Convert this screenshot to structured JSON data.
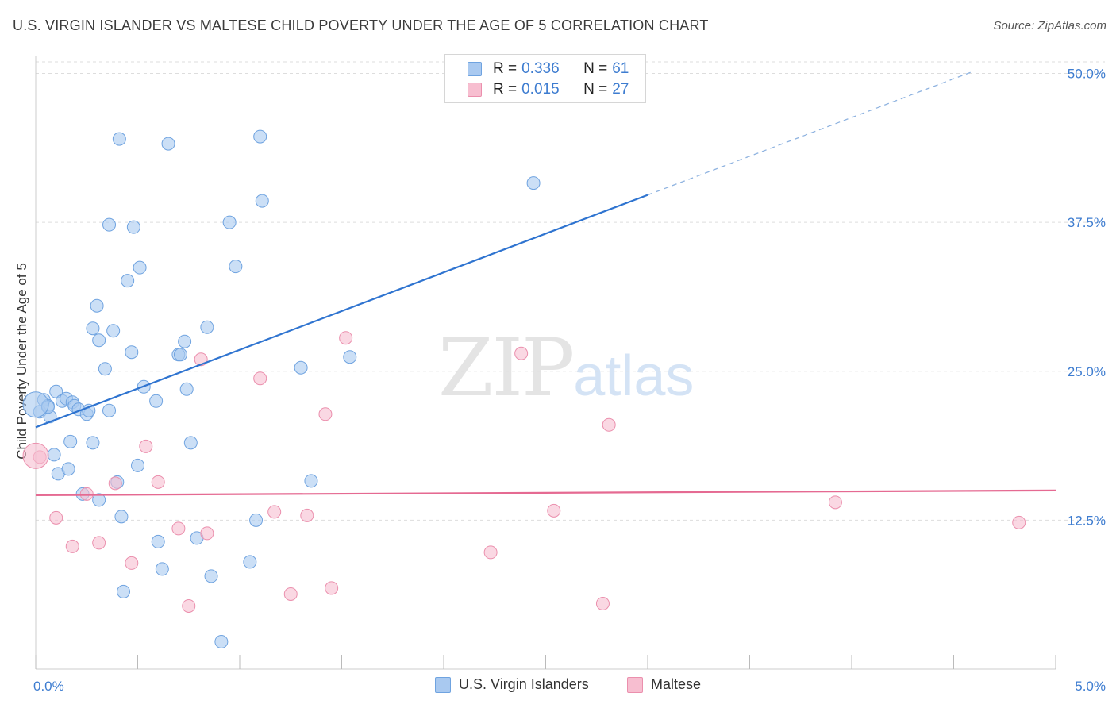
{
  "title": "U.S. VIRGIN ISLANDER VS MALTESE CHILD POVERTY UNDER THE AGE OF 5 CORRELATION CHART",
  "source": "Source: ZipAtlas.com",
  "watermark": {
    "zip": "ZIP",
    "atlas": "atlas"
  },
  "legend": {
    "rows": [
      {
        "r_label": "R =",
        "r_value": "0.336",
        "n_label": "N =",
        "n_value": "61",
        "color": "#a9c9f0"
      },
      {
        "r_label": "R =",
        "r_value": "0.015",
        "n_label": "N =",
        "n_value": "27",
        "color": "#f7bed0"
      }
    ]
  },
  "colors": {
    "blue_fill": "#a9c9f0",
    "blue_stroke": "#6fa3e0",
    "blue_line": "#2f74d0",
    "pink_fill": "#f7bed0",
    "pink_stroke": "#eb8fad",
    "pink_line": "#e56a92",
    "tick_label": "#3d7cd0",
    "grid": "#dddddd"
  },
  "chart_data": {
    "type": "scatter",
    "title": "U.S. VIRGIN ISLANDER VS MALTESE CHILD POVERTY UNDER THE AGE OF 5 CORRELATION CHART",
    "xlabel": "",
    "ylabel": "Child Poverty Under the Age of 5",
    "xlim": [
      0,
      5.0
    ],
    "ylim": [
      0,
      51.5
    ],
    "x_tick_labels": [
      "0.0%",
      "5.0%"
    ],
    "y_ticks": [
      12.5,
      25.0,
      37.5,
      50.0
    ],
    "y_tick_labels": [
      "12.5%",
      "25.0%",
      "37.5%",
      "50.0%"
    ],
    "grid": true,
    "legend_position": "top-center",
    "series": [
      {
        "name": "U.S. Virgin Islanders",
        "points": [
          [
            0.02,
            21.6
          ],
          [
            0.04,
            22.6
          ],
          [
            0.06,
            22.1
          ],
          [
            0.07,
            21.2
          ],
          [
            0.09,
            18.0
          ],
          [
            0.1,
            23.3
          ],
          [
            0.11,
            16.4
          ],
          [
            0.13,
            22.5
          ],
          [
            0.15,
            22.7
          ],
          [
            0.16,
            16.8
          ],
          [
            0.17,
            19.1
          ],
          [
            0.18,
            22.4
          ],
          [
            0.19,
            22.1
          ],
          [
            0.21,
            21.8
          ],
          [
            0.23,
            14.7
          ],
          [
            0.25,
            21.4
          ],
          [
            0.26,
            21.7
          ],
          [
            0.28,
            28.6
          ],
          [
            0.28,
            19.0
          ],
          [
            0.3,
            30.5
          ],
          [
            0.31,
            14.2
          ],
          [
            0.31,
            27.6
          ],
          [
            0.34,
            25.2
          ],
          [
            0.36,
            21.7
          ],
          [
            0.38,
            28.4
          ],
          [
            0.4,
            15.7
          ],
          [
            0.41,
            44.5
          ],
          [
            0.42,
            12.8
          ],
          [
            0.43,
            6.5
          ],
          [
            0.45,
            32.6
          ],
          [
            0.47,
            26.6
          ],
          [
            0.48,
            37.1
          ],
          [
            0.5,
            17.1
          ],
          [
            0.51,
            33.7
          ],
          [
            0.53,
            23.7
          ],
          [
            0.59,
            22.5
          ],
          [
            0.6,
            10.7
          ],
          [
            0.62,
            8.4
          ],
          [
            0.65,
            44.1
          ],
          [
            0.7,
            26.4
          ],
          [
            0.71,
            26.4
          ],
          [
            0.73,
            27.5
          ],
          [
            0.74,
            23.5
          ],
          [
            0.76,
            19.0
          ],
          [
            0.79,
            11.0
          ],
          [
            0.84,
            28.7
          ],
          [
            0.86,
            7.8
          ],
          [
            0.91,
            2.3
          ],
          [
            0.95,
            37.5
          ],
          [
            0.98,
            33.8
          ],
          [
            1.05,
            9.0
          ],
          [
            1.08,
            12.5
          ],
          [
            1.1,
            44.7
          ],
          [
            1.11,
            39.3
          ],
          [
            1.3,
            25.3
          ],
          [
            1.35,
            15.8
          ],
          [
            1.54,
            26.2
          ],
          [
            2.44,
            40.8
          ],
          [
            2.48,
            49.7
          ],
          [
            0.36,
            37.3
          ],
          [
            0.06,
            22.0
          ]
        ]
      },
      {
        "name": "Maltese",
        "points": [
          [
            0.02,
            17.8
          ],
          [
            0.1,
            12.7
          ],
          [
            0.18,
            10.3
          ],
          [
            0.25,
            14.7
          ],
          [
            0.31,
            10.6
          ],
          [
            0.39,
            15.6
          ],
          [
            0.47,
            8.9
          ],
          [
            0.54,
            18.7
          ],
          [
            0.6,
            15.7
          ],
          [
            0.7,
            11.8
          ],
          [
            0.75,
            5.3
          ],
          [
            0.81,
            26.0
          ],
          [
            0.84,
            11.4
          ],
          [
            1.1,
            24.4
          ],
          [
            1.17,
            13.2
          ],
          [
            1.25,
            6.3
          ],
          [
            1.33,
            12.9
          ],
          [
            1.42,
            21.4
          ],
          [
            1.45,
            6.8
          ],
          [
            1.52,
            27.8
          ],
          [
            2.23,
            9.8
          ],
          [
            2.38,
            26.5
          ],
          [
            2.54,
            13.3
          ],
          [
            2.78,
            5.5
          ],
          [
            2.81,
            20.5
          ],
          [
            3.92,
            14.0
          ],
          [
            4.82,
            12.3
          ]
        ]
      }
    ],
    "trend_lines": [
      {
        "series": "U.S. Virgin Islanders",
        "x": [
          0.0,
          3.0
        ],
        "y": [
          20.3,
          39.8
        ],
        "dashed_extension": {
          "x": [
            3.0,
            4.6
          ],
          "y": [
            39.8,
            50.2
          ]
        }
      },
      {
        "series": "Maltese",
        "x": [
          0.0,
          5.0
        ],
        "y": [
          14.6,
          15.0
        ]
      }
    ]
  }
}
